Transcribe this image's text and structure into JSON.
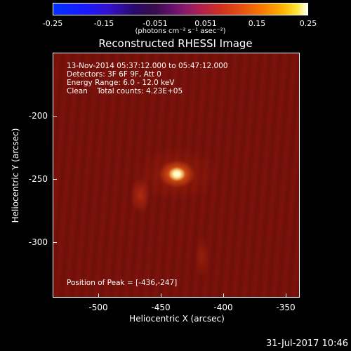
{
  "colorbar": {
    "ticks": [
      "-0.25",
      "-0.15",
      "-0.051",
      "0.051",
      "0.15",
      "0.25"
    ],
    "units": "(photons cm⁻² s⁻¹ asec⁻²)"
  },
  "title": "Reconstructed RHESSI Image",
  "info": {
    "time": "13-Nov-2014 05:37:12.000 to 05:47:12.000",
    "detectors": "Detectors: 3F 6F 9F, Att 0",
    "energy": "Energy Range: 6.0 - 12.0 keV",
    "clean": "Clean    Total counts: 4.23E+05",
    "peak": "Position of Peak = [-436,-247]"
  },
  "axes": {
    "xlabel": "Heliocentric X (arcsec)",
    "ylabel": "Heliocentric Y (arcsec)",
    "xticks": [
      "-500",
      "-450",
      "-400",
      "-350"
    ],
    "yticks": [
      "-200",
      "-250",
      "-300"
    ]
  },
  "timestamp": "31-Jul-2017 10:46"
}
